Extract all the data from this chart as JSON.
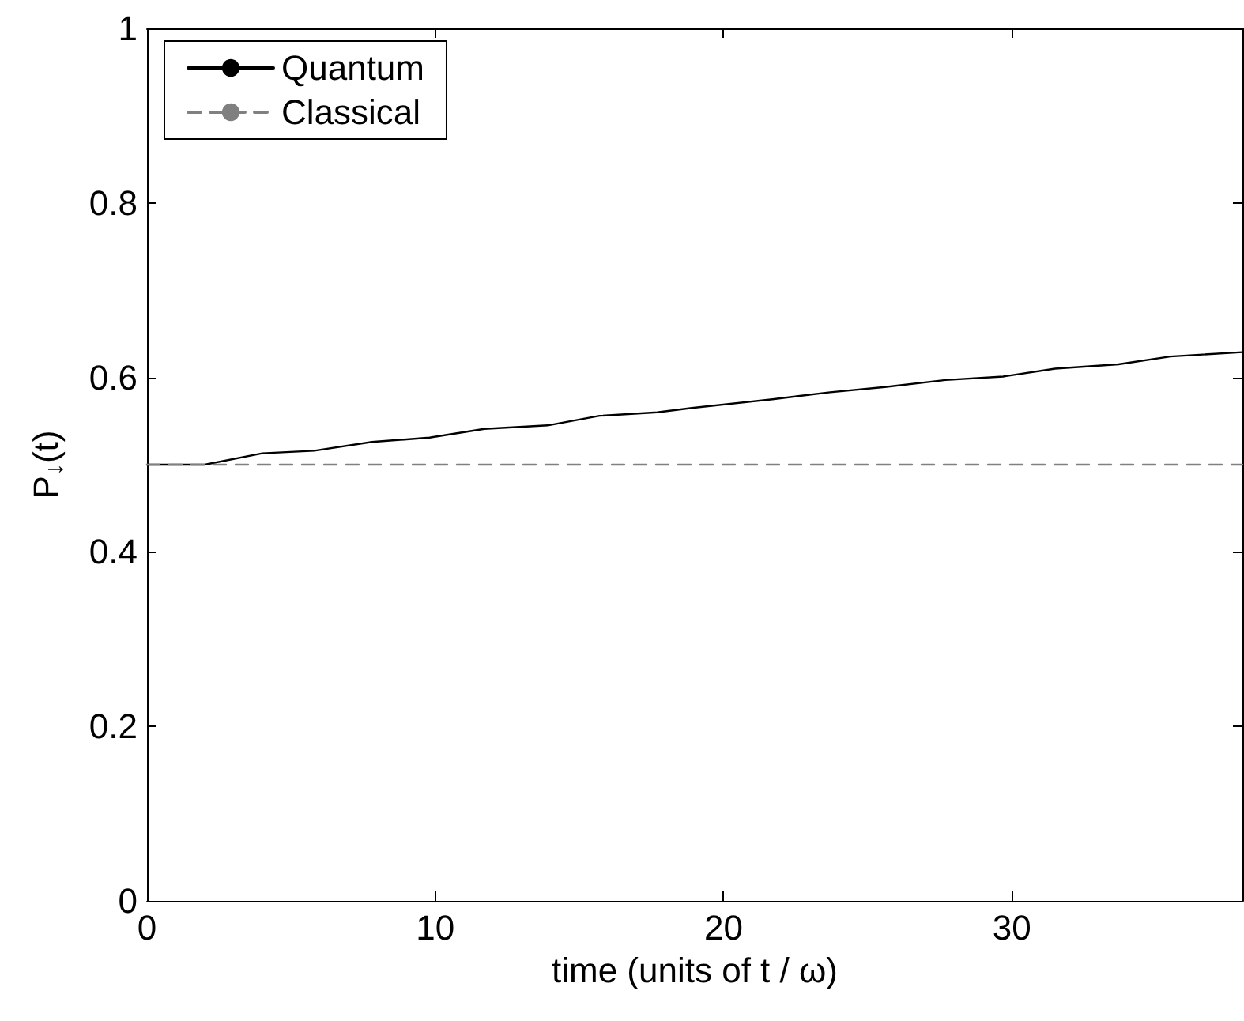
{
  "chart_data": {
    "type": "line",
    "xlabel": "time (units of t / ω)",
    "ylabel": "P$_{↓}$(t)",
    "xlim": [
      0,
      38
    ],
    "xticks": [
      0,
      10,
      20,
      30
    ],
    "ylim": [
      0,
      1
    ],
    "yticks": [
      0,
      0.2,
      0.4,
      0.6,
      0.8,
      1
    ],
    "grid": false,
    "legend": "top left",
    "marker": "none",
    "series": [
      {
        "name": "Quantum",
        "color": "#000000",
        "line_style": "solid",
        "x": [
          0,
          2,
          4,
          5.8,
          7.8,
          9.8,
          11.7,
          13.9,
          15.7,
          17.7,
          18.9,
          21.7,
          23.7,
          25.6,
          27.7,
          29.7,
          31.5,
          33.7,
          35.5,
          38
        ],
        "values": [
          0.5,
          0.5,
          0.513,
          0.516,
          0.526,
          0.531,
          0.541,
          0.545,
          0.556,
          0.56,
          0.565,
          0.575,
          0.583,
          0.589,
          0.597,
          0.601,
          0.61,
          0.615,
          0.624,
          0.629
        ]
      },
      {
        "name": "Classical",
        "color": "#808080",
        "line_style": "dashed",
        "x": [
          0,
          38
        ],
        "values": [
          0.5,
          0.5
        ]
      }
    ]
  }
}
